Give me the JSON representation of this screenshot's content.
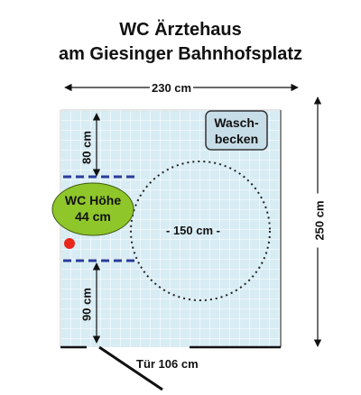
{
  "title": {
    "line1": "WC Ärztehaus",
    "line2": "am Giesinger  Bahnhofsplatz"
  },
  "dimensions": {
    "width": "230 cm",
    "height": "250 cm",
    "left_top": "80 cm",
    "left_bottom": "90 cm",
    "turning_circle": "- 150 cm -",
    "door": "Tür 106 cm"
  },
  "toilet": {
    "line1": "WC Höhe",
    "line2": "44 cm"
  },
  "sink": {
    "line1": "Wasch-",
    "line2": "becken"
  },
  "colors": {
    "tile_fill": "#d8ecf4",
    "grid_line": "#ffffff",
    "toilet_fill": "#8fc62a",
    "sink_fill": "#c7dde8",
    "marker": "#e8261a",
    "rail": "#2a3c9a"
  }
}
